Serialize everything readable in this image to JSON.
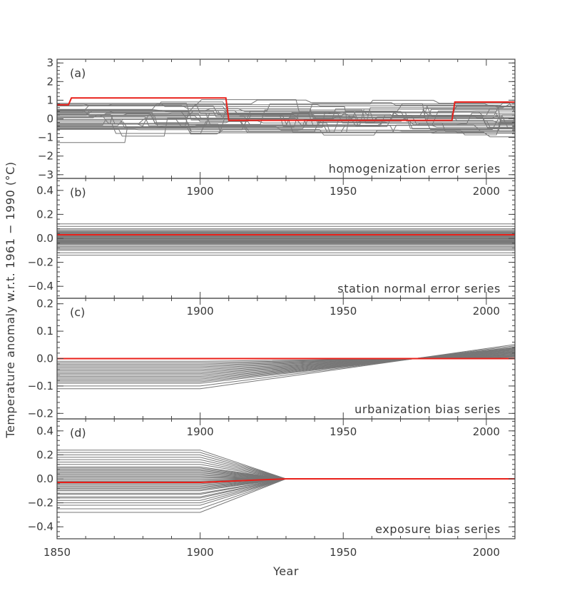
{
  "chart_data": {
    "type": "line",
    "xlabel": "Year",
    "ylabel": "Temperature anomaly w.r.t. 1961 − 1990 (°C)",
    "xlim": [
      1850,
      2010
    ],
    "x_ticks": [
      1850,
      1900,
      1950,
      2000
    ],
    "panels": [
      {
        "label": "(a)",
        "title": "homogenization error series",
        "ylim": [
          -3.2,
          3.2
        ],
        "y_ticks": [
          -3,
          -2,
          -1,
          0,
          1,
          2,
          3
        ],
        "tick_labels": [
          "−3",
          "−2",
          "−1",
          "0",
          "1",
          "2",
          "3"
        ],
        "show_x_tick_labels": false,
        "highlight_series": {
          "color": "#e8201a",
          "points": [
            [
              1850,
              0.75
            ],
            [
              1854,
              0.75
            ],
            [
              1855,
              1.12
            ],
            [
              1909,
              1.12
            ],
            [
              1910,
              -0.08
            ],
            [
              1988,
              -0.08
            ],
            [
              1989,
              0.9
            ],
            [
              2010,
              0.9
            ]
          ]
        },
        "background_series": {
          "color": "#777777",
          "count": 40,
          "description": "random step-change series mostly between −1.5 and 1.5"
        }
      },
      {
        "label": "(b)",
        "title": "station normal error series",
        "ylim": [
          -0.5,
          0.5
        ],
        "y_ticks": [
          -0.4,
          -0.2,
          0.0,
          0.2,
          0.4
        ],
        "tick_labels": [
          "−0.4",
          "−0.2",
          "0.0",
          "0.2",
          "0.4"
        ],
        "show_x_tick_labels": true,
        "highlight_series": {
          "color": "#e8201a",
          "points": [
            [
              1850,
              0.03
            ],
            [
              2010,
              0.03
            ]
          ]
        },
        "background_series": {
          "color": "#777777",
          "constant_offsets": [
            -0.14,
            -0.12,
            -0.1,
            -0.09,
            -0.08,
            -0.07,
            -0.06,
            -0.05,
            -0.045,
            -0.04,
            -0.035,
            -0.03,
            -0.025,
            -0.02,
            -0.015,
            -0.01,
            -0.005,
            0.0,
            0.005,
            0.01,
            0.015,
            0.02,
            0.025,
            0.03,
            0.035,
            0.04,
            0.045,
            0.05,
            0.055,
            0.06,
            0.07,
            0.08,
            0.1,
            0.12
          ]
        }
      },
      {
        "label": "(c)",
        "title": "urbanization bias series",
        "ylim": [
          -0.22,
          0.22
        ],
        "y_ticks": [
          -0.2,
          -0.1,
          0.0,
          0.1,
          0.2
        ],
        "tick_labels": [
          "−0.2",
          "−0.1",
          "0.0",
          "0.1",
          "0.2"
        ],
        "show_x_tick_labels": true,
        "highlight_series": {
          "color": "#e8201a",
          "points": [
            [
              1850,
              0.0
            ],
            [
              2010,
              0.0
            ]
          ]
        },
        "background_series": {
          "color": "#777777",
          "description": "flat until 1900, linear trend crossing zero at 1975",
          "offsets_before_1900": [
            -0.11,
            -0.1,
            -0.09,
            -0.085,
            -0.08,
            -0.075,
            -0.07,
            -0.065,
            -0.06,
            -0.055,
            -0.05,
            -0.045,
            -0.04,
            -0.035,
            -0.03,
            -0.025,
            -0.02,
            -0.015,
            -0.01
          ],
          "zero_crossing_year": 1975
        }
      },
      {
        "label": "(d)",
        "title": "exposure bias series",
        "ylim": [
          -0.5,
          0.5
        ],
        "y_ticks": [
          -0.4,
          -0.2,
          0.0,
          0.2,
          0.4
        ],
        "tick_labels": [
          "−0.4",
          "−0.2",
          "0.0",
          "0.2",
          "0.4"
        ],
        "show_x_tick_labels": true,
        "highlight_series": {
          "color": "#e8201a",
          "points": [
            [
              1850,
              -0.03
            ],
            [
              1900,
              -0.03
            ],
            [
              1930,
              0.0
            ],
            [
              2010,
              0.0
            ]
          ]
        },
        "background_series": {
          "color": "#777777",
          "description": "flat offsets until 1900, converging to zero by 1930",
          "offsets_before_1900": [
            -0.28,
            -0.25,
            -0.22,
            -0.2,
            -0.18,
            -0.16,
            -0.15,
            -0.13,
            -0.12,
            -0.1,
            -0.09,
            -0.08,
            -0.07,
            -0.06,
            -0.05,
            -0.04,
            -0.03,
            -0.02,
            -0.01,
            0.0,
            0.01,
            0.02,
            0.03,
            0.04,
            0.05,
            0.06,
            0.07,
            0.08,
            0.09,
            0.1,
            0.12,
            0.14,
            0.16,
            0.18,
            0.2,
            0.22,
            0.24
          ],
          "converge_year": 1930
        }
      }
    ]
  }
}
